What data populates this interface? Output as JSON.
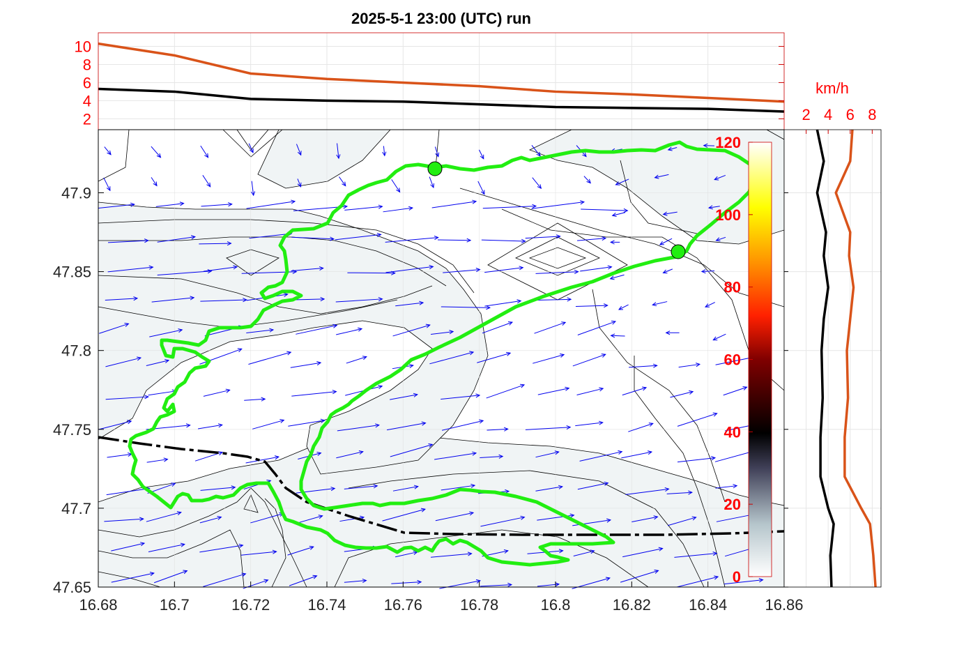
{
  "title": "2025-5-1  23:00 (UTC) run",
  "colors": {
    "orange": "#D95319",
    "black": "#000000",
    "green": "#22EE11",
    "red_text": "#FF0000",
    "arrow": "#0000EE",
    "shade": "#F0F4F5"
  },
  "chart_data": [
    {
      "id": "top-profile",
      "type": "line",
      "x": [
        16.68,
        16.7,
        16.72,
        16.74,
        16.76,
        16.78,
        16.8,
        16.82,
        16.84,
        16.86
      ],
      "series": [
        {
          "color": "#D95319",
          "values": [
            10.3,
            9.0,
            7.0,
            6.4,
            6.0,
            5.6,
            5.0,
            4.7,
            4.3,
            3.9
          ]
        },
        {
          "color": "#000000",
          "values": [
            5.3,
            5.0,
            4.2,
            4.0,
            3.9,
            3.6,
            3.3,
            3.2,
            3.1,
            2.8
          ]
        }
      ],
      "xlim": [
        16.68,
        16.86
      ],
      "ylim": [
        0.8,
        11.5
      ],
      "yticks": [
        "2",
        "4",
        "6",
        "8",
        "10"
      ],
      "grid": true
    },
    {
      "id": "main-map",
      "type": "scatter",
      "xlim": [
        16.68,
        16.86
      ],
      "ylim": [
        47.65,
        47.94
      ],
      "xticks": [
        "16.68",
        "16.7",
        "16.72",
        "16.74",
        "16.76",
        "16.78",
        "16.8",
        "16.82",
        "16.84",
        "16.86"
      ],
      "yticks": [
        "47.65",
        "47.7",
        "47.75",
        "47.8",
        "47.85",
        "47.9"
      ],
      "markers": [
        {
          "x": 16.769,
          "y": 47.916
        },
        {
          "x": 16.832,
          "y": 47.864
        }
      ],
      "colorbar": {
        "ticks": [
          "0",
          "20",
          "40",
          "60",
          "80",
          "100",
          "120"
        ],
        "range": [
          0,
          120
        ]
      },
      "grid": true
    },
    {
      "id": "side-profile",
      "type": "line",
      "xlabel": "km/h",
      "xticks": [
        "2",
        "4",
        "6",
        "8"
      ],
      "xlim": [
        0,
        8.8
      ],
      "ylim": [
        47.65,
        47.94
      ],
      "y": [
        47.65,
        47.67,
        47.69,
        47.7,
        47.72,
        47.745,
        47.77,
        47.8,
        47.82,
        47.84,
        47.86,
        47.875,
        47.9,
        47.92,
        47.94
      ],
      "series": [
        {
          "color": "#D95319",
          "values": [
            8.3,
            8.1,
            7.8,
            7.0,
            5.5,
            5.5,
            5.8,
            5.7,
            6.0,
            6.3,
            5.9,
            6.0,
            4.7,
            6.0,
            6.2
          ]
        },
        {
          "color": "#000000",
          "values": [
            4.3,
            4.2,
            4.5,
            4.0,
            3.3,
            3.3,
            3.5,
            3.4,
            3.6,
            4.0,
            3.6,
            3.8,
            3.0,
            3.6,
            3.0
          ]
        }
      ],
      "grid": true
    }
  ]
}
